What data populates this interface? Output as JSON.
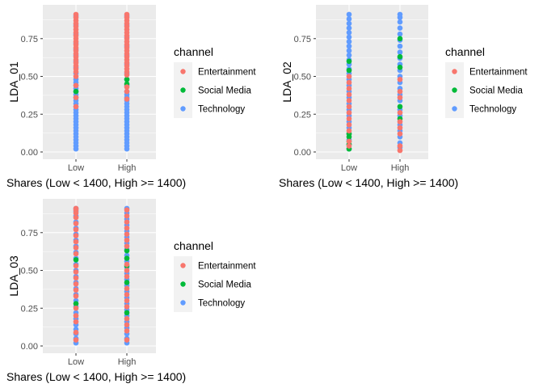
{
  "chart_data": [
    {
      "type": "scatter",
      "title": "",
      "xlabel": "Shares (Low < 1400, High >= 1400)",
      "ylabel": "LDA_01",
      "categories": [
        "Low",
        "High"
      ],
      "yticks": [
        "0.00",
        "0.25",
        "0.50",
        "0.75"
      ],
      "ylim": [
        0,
        0.92
      ],
      "legend": {
        "title": "channel",
        "placement": "right",
        "entries": [
          {
            "label": "Entertainment",
            "color": "#F8766D"
          },
          {
            "label": "Social Media",
            "color": "#00BA38"
          },
          {
            "label": "Technology",
            "color": "#619CFF"
          }
        ]
      },
      "series": [
        {
          "name": "Technology",
          "color": "#619CFF",
          "Low": [
            0.02,
            0.04,
            0.06,
            0.08,
            0.1,
            0.12,
            0.14,
            0.16,
            0.18,
            0.2,
            0.22,
            0.24,
            0.26,
            0.28,
            0.3,
            0.32,
            0.34,
            0.36,
            0.38,
            0.4,
            0.42,
            0.44,
            0.46,
            0.48,
            0.52,
            0.56,
            0.6,
            0.64,
            0.68,
            0.72,
            0.78,
            0.84,
            0.9
          ],
          "High": [
            0.02,
            0.04,
            0.06,
            0.08,
            0.1,
            0.12,
            0.14,
            0.16,
            0.18,
            0.2,
            0.22,
            0.24,
            0.26,
            0.28,
            0.3,
            0.32,
            0.34,
            0.36,
            0.38,
            0.4,
            0.44,
            0.48,
            0.52,
            0.58,
            0.64,
            0.7,
            0.76,
            0.84,
            0.9
          ]
        },
        {
          "name": "Social Media",
          "color": "#00BA38",
          "Low": [
            0.4
          ],
          "High": [
            0.45,
            0.48
          ]
        },
        {
          "name": "Entertainment",
          "color": "#F8766D",
          "Low": [
            0.3,
            0.36,
            0.44,
            0.5,
            0.53,
            0.55,
            0.57,
            0.59,
            0.61,
            0.63,
            0.65,
            0.67,
            0.69,
            0.71,
            0.73,
            0.75,
            0.77,
            0.79,
            0.81,
            0.83,
            0.85,
            0.87,
            0.89,
            0.91
          ],
          "High": [
            0.35,
            0.4,
            0.43,
            0.51,
            0.53,
            0.55,
            0.57,
            0.59,
            0.61,
            0.63,
            0.65,
            0.67,
            0.69,
            0.71,
            0.73,
            0.75,
            0.77,
            0.79,
            0.81,
            0.83,
            0.85,
            0.87,
            0.89,
            0.91
          ]
        }
      ]
    },
    {
      "type": "scatter",
      "title": "",
      "xlabel": "Shares (Low < 1400, High >= 1400)",
      "ylabel": "LDA_02",
      "categories": [
        "Low",
        "High"
      ],
      "yticks": [
        "0.00",
        "0.25",
        "0.50",
        "0.75"
      ],
      "ylim": [
        0,
        0.92
      ],
      "legend": {
        "title": "channel",
        "placement": "right",
        "entries": [
          {
            "label": "Entertainment",
            "color": "#F8766D"
          },
          {
            "label": "Social Media",
            "color": "#00BA38"
          },
          {
            "label": "Technology",
            "color": "#619CFF"
          }
        ]
      },
      "series": [
        {
          "name": "Technology",
          "color": "#619CFF",
          "Low": [
            0.02,
            0.05,
            0.08,
            0.12,
            0.16,
            0.2,
            0.24,
            0.28,
            0.32,
            0.36,
            0.4,
            0.44,
            0.48,
            0.52,
            0.55,
            0.58,
            0.61,
            0.64,
            0.67,
            0.7,
            0.73,
            0.76,
            0.79,
            0.82,
            0.85,
            0.88,
            0.91
          ],
          "High": [
            0.03,
            0.06,
            0.1,
            0.14,
            0.18,
            0.24,
            0.28,
            0.34,
            0.38,
            0.42,
            0.46,
            0.5,
            0.54,
            0.58,
            0.62,
            0.66,
            0.7,
            0.74,
            0.78,
            0.82,
            0.86,
            0.89,
            0.91
          ]
        },
        {
          "name": "Social Media",
          "color": "#00BA38",
          "Low": [
            0.02,
            0.05,
            0.07,
            0.1,
            0.12,
            0.54,
            0.6
          ],
          "High": [
            0.22,
            0.3,
            0.56,
            0.63,
            0.75
          ]
        },
        {
          "name": "Entertainment",
          "color": "#F8766D",
          "Low": [
            0.04,
            0.07,
            0.14,
            0.18,
            0.22,
            0.26,
            0.3,
            0.34,
            0.38,
            0.42,
            0.46,
            0.5
          ],
          "High": [
            0.01,
            0.04,
            0.12,
            0.16,
            0.2,
            0.26,
            0.36,
            0.4,
            0.48
          ]
        }
      ]
    },
    {
      "type": "scatter",
      "title": "",
      "xlabel": "Shares (Low < 1400, High >= 1400)",
      "ylabel": "LDA_03",
      "categories": [
        "Low",
        "High"
      ],
      "yticks": [
        "0.00",
        "0.25",
        "0.50",
        "0.75"
      ],
      "ylim": [
        0,
        0.92
      ],
      "legend": {
        "title": "channel",
        "placement": "right",
        "entries": [
          {
            "label": "Entertainment",
            "color": "#F8766D"
          },
          {
            "label": "Social Media",
            "color": "#00BA38"
          },
          {
            "label": "Technology",
            "color": "#619CFF"
          }
        ]
      },
      "series": [
        {
          "name": "Technology",
          "color": "#619CFF",
          "Low": [
            0.02,
            0.05,
            0.08,
            0.11,
            0.14,
            0.18,
            0.22,
            0.26,
            0.3,
            0.34,
            0.38,
            0.42,
            0.46,
            0.5,
            0.54,
            0.58,
            0.62,
            0.66,
            0.7,
            0.74,
            0.78,
            0.82,
            0.86,
            0.89,
            0.91
          ],
          "High": [
            0.02,
            0.05,
            0.08,
            0.12,
            0.16,
            0.2,
            0.24,
            0.28,
            0.32,
            0.36,
            0.4,
            0.44,
            0.48,
            0.52,
            0.56,
            0.6,
            0.64,
            0.68,
            0.72,
            0.76,
            0.8,
            0.84,
            0.88,
            0.91
          ]
        },
        {
          "name": "Social Media",
          "color": "#00BA38",
          "Low": [
            0.28,
            0.57
          ],
          "High": [
            0.22,
            0.42,
            0.53,
            0.58,
            0.63
          ]
        },
        {
          "name": "Entertainment",
          "color": "#F8766D",
          "Low": [
            0.04,
            0.09,
            0.16,
            0.2,
            0.25,
            0.33,
            0.37,
            0.41,
            0.45,
            0.49,
            0.53,
            0.61,
            0.65,
            0.69,
            0.73,
            0.77,
            0.81,
            0.85,
            0.88,
            0.9,
            0.91
          ],
          "High": [
            0.04,
            0.1,
            0.14,
            0.18,
            0.26,
            0.3,
            0.34,
            0.38,
            0.46,
            0.5,
            0.54,
            0.66,
            0.7,
            0.74,
            0.78,
            0.82,
            0.86,
            0.9
          ]
        }
      ]
    }
  ]
}
